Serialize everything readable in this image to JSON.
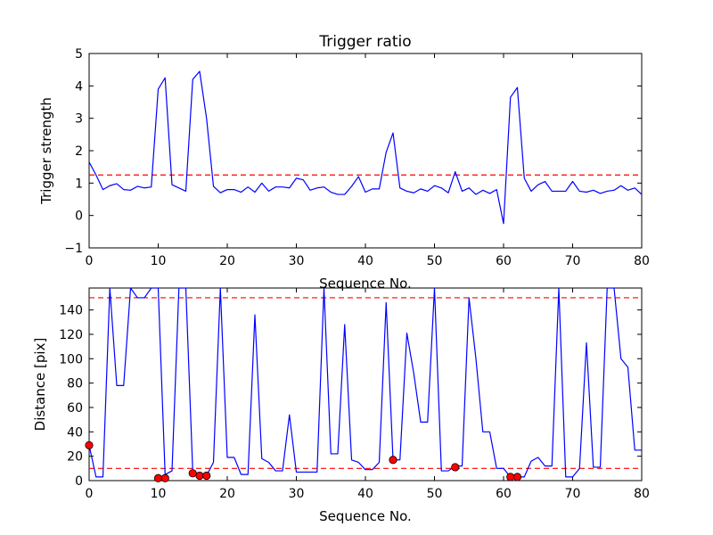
{
  "chart_data": [
    {
      "type": "line",
      "title": "Trigger ratio",
      "xlabel": "Sequence No.",
      "ylabel": "Trigger strength",
      "xlim": [
        0,
        80
      ],
      "ylim": [
        -1,
        5
      ],
      "xticks": [
        "0",
        "10",
        "20",
        "30",
        "40",
        "50",
        "60",
        "70",
        "80"
      ],
      "yticks": [
        "−1",
        "0",
        "1",
        "2",
        "3",
        "4",
        "5"
      ],
      "grid": false,
      "series": [
        {
          "color": "#0000ff",
          "x": [
            0,
            1,
            2,
            3,
            4,
            5,
            6,
            7,
            8,
            9,
            10,
            11,
            12,
            13,
            14,
            15,
            16,
            17,
            18,
            19,
            20,
            21,
            22,
            23,
            24,
            25,
            26,
            27,
            28,
            29,
            30,
            31,
            32,
            33,
            34,
            35,
            36,
            37,
            38,
            39,
            40,
            41,
            42,
            43,
            44,
            45,
            46,
            47,
            48,
            49,
            50,
            51,
            52,
            53,
            54,
            55,
            56,
            57,
            58,
            59,
            60,
            61,
            62,
            63,
            64,
            65,
            66,
            67,
            68,
            69,
            70,
            71,
            72,
            73,
            74,
            75,
            76,
            77,
            78,
            79,
            80
          ],
          "y": [
            1.65,
            1.25,
            0.8,
            0.92,
            0.98,
            0.8,
            0.78,
            0.9,
            0.85,
            0.88,
            3.9,
            4.25,
            0.95,
            0.85,
            0.75,
            4.2,
            4.45,
            3.0,
            0.9,
            0.7,
            0.8,
            0.8,
            0.72,
            0.88,
            0.72,
            1.0,
            0.75,
            0.88,
            0.88,
            0.85,
            1.15,
            1.1,
            0.78,
            0.85,
            0.88,
            0.72,
            0.65,
            0.65,
            0.9,
            1.2,
            0.72,
            0.82,
            0.82,
            1.95,
            2.55,
            0.85,
            0.75,
            0.7,
            0.82,
            0.75,
            0.92,
            0.85,
            0.7,
            1.35,
            0.75,
            0.85,
            0.65,
            0.78,
            0.68,
            0.8,
            -0.25,
            3.65,
            3.95,
            1.15,
            0.75,
            0.95,
            1.05,
            0.75,
            0.75,
            0.75,
            1.05,
            0.75,
            0.72,
            0.78,
            0.68,
            0.75,
            0.78,
            0.92,
            0.78,
            0.85,
            0.65
          ]
        }
      ],
      "threshold": {
        "y": 1.25,
        "color": "#ff0000",
        "style": "dashed"
      }
    },
    {
      "type": "line",
      "xlabel": "Sequence No.",
      "ylabel": "Distance [pix]",
      "xlim": [
        0,
        80
      ],
      "ylim": [
        0,
        158
      ],
      "xticks": [
        "0",
        "10",
        "20",
        "30",
        "40",
        "50",
        "60",
        "70",
        "80"
      ],
      "yticks": [
        "0",
        "20",
        "40",
        "60",
        "80",
        "100",
        "120",
        "140"
      ],
      "grid": false,
      "series": [
        {
          "color": "#0000ff",
          "x": [
            0,
            1,
            2,
            3,
            4,
            5,
            6,
            7,
            8,
            9,
            10,
            11,
            12,
            13,
            14,
            15,
            16,
            17,
            18,
            19,
            20,
            21,
            22,
            23,
            24,
            25,
            26,
            27,
            28,
            29,
            30,
            31,
            32,
            33,
            34,
            35,
            36,
            37,
            38,
            39,
            40,
            41,
            42,
            43,
            44,
            45,
            46,
            47,
            48,
            49,
            50,
            51,
            52,
            53,
            54,
            55,
            56,
            57,
            58,
            59,
            60,
            61,
            62,
            63,
            64,
            65,
            66,
            67,
            68,
            69,
            70,
            71,
            72,
            73,
            74,
            75,
            76,
            77,
            78,
            79,
            80
          ],
          "y": [
            29,
            3,
            3,
            158,
            78,
            78,
            158,
            150,
            150,
            158,
            158,
            5,
            8,
            158,
            158,
            8,
            4,
            4,
            15,
            158,
            19,
            19,
            5,
            5,
            136,
            18,
            15,
            8,
            8,
            54,
            7,
            7,
            7,
            7,
            158,
            22,
            22,
            128,
            17,
            15,
            9,
            9,
            15,
            146,
            17,
            17,
            121,
            88,
            48,
            48,
            158,
            8,
            8,
            12,
            12,
            150,
            100,
            40,
            40,
            10,
            10,
            3,
            3,
            3,
            16,
            19,
            12,
            12,
            158,
            3,
            3,
            10,
            113,
            11,
            11,
            158,
            158,
            100,
            93,
            25,
            25
          ]
        },
        {
          "name": "",
          "marker": "circle",
          "color": "#ff0000",
          "x": [
            0,
            10,
            11,
            15,
            16,
            17,
            44,
            53,
            61,
            62
          ],
          "y": [
            29,
            2,
            2,
            6,
            4,
            4,
            17,
            11,
            3,
            3
          ]
        }
      ],
      "thresholds": [
        {
          "y": 150,
          "color": "#ff0000",
          "style": "dashed"
        },
        {
          "y": 10,
          "color": "#ff0000",
          "style": "dashed"
        }
      ]
    }
  ]
}
